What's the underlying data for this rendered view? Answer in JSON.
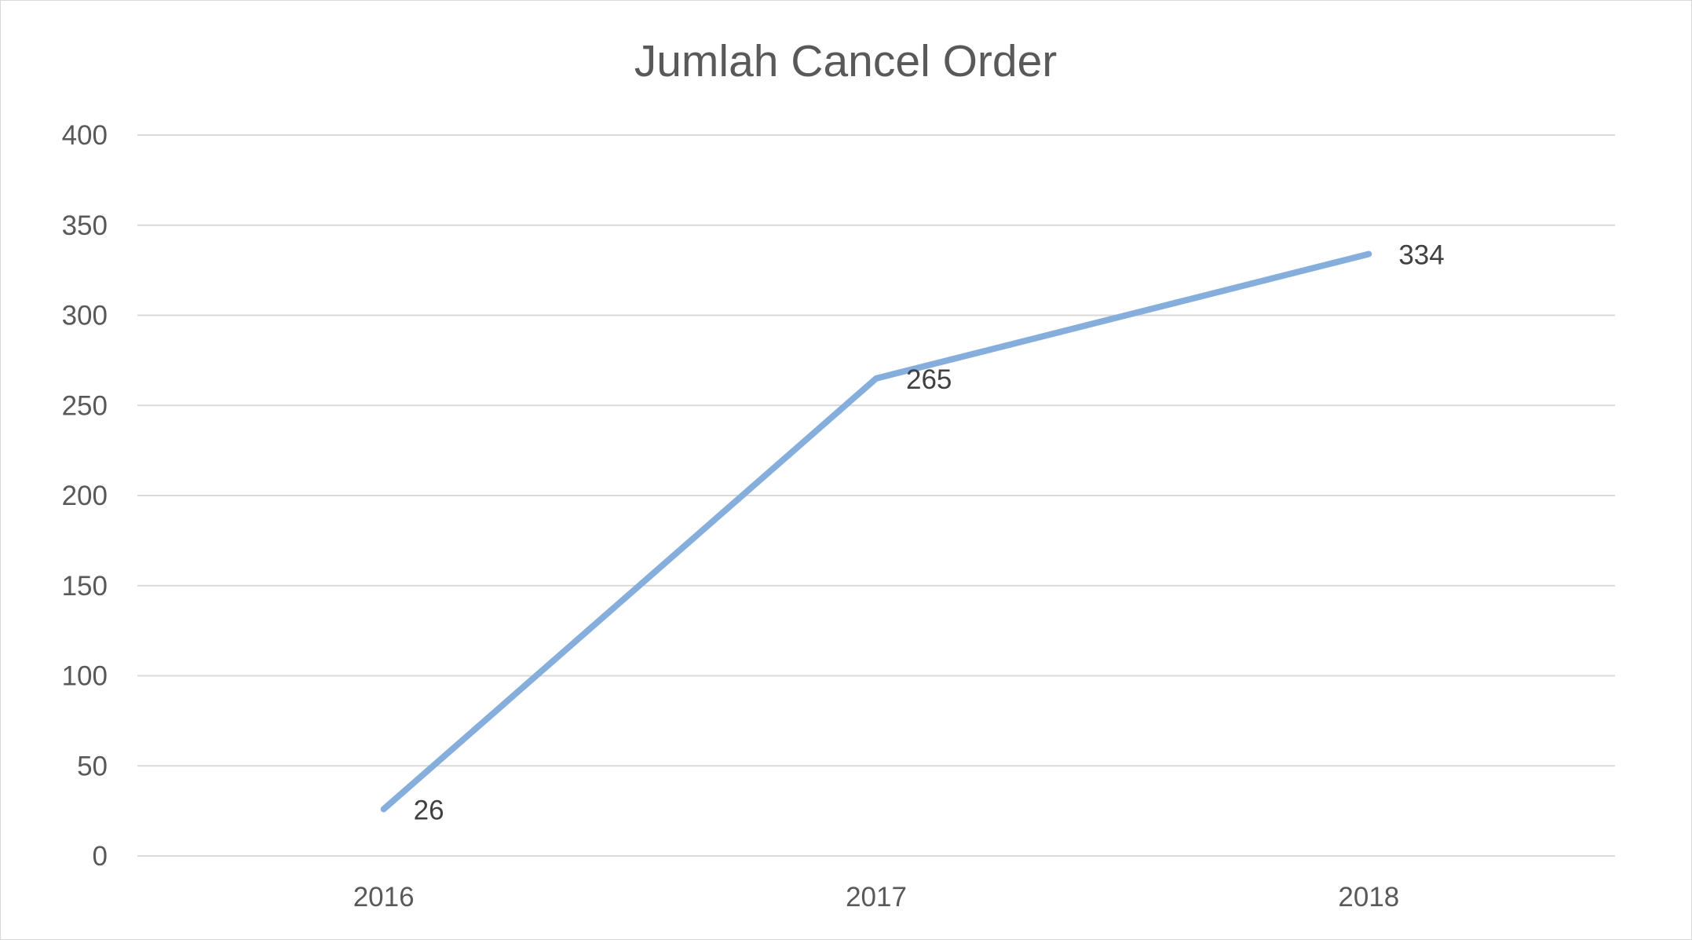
{
  "chart_data": {
    "type": "line",
    "title": "Jumlah Cancel Order",
    "categories": [
      "2016",
      "2017",
      "2018"
    ],
    "series": [
      {
        "values": [
          26,
          265,
          334
        ]
      }
    ],
    "data_labels": [
      "26",
      "265",
      "334"
    ],
    "ylim": [
      0,
      400
    ],
    "y_ticks": [
      0,
      50,
      100,
      150,
      200,
      250,
      300,
      350,
      400
    ],
    "y_tick_labels": [
      "0",
      "50",
      "100",
      "150",
      "200",
      "250",
      "300",
      "350",
      "400"
    ],
    "xlabel": "",
    "ylabel": "",
    "grid": true,
    "legend": "none",
    "colors": {
      "series": "#86aedc",
      "grid": "#d9d9d9",
      "text": "#595959"
    }
  }
}
